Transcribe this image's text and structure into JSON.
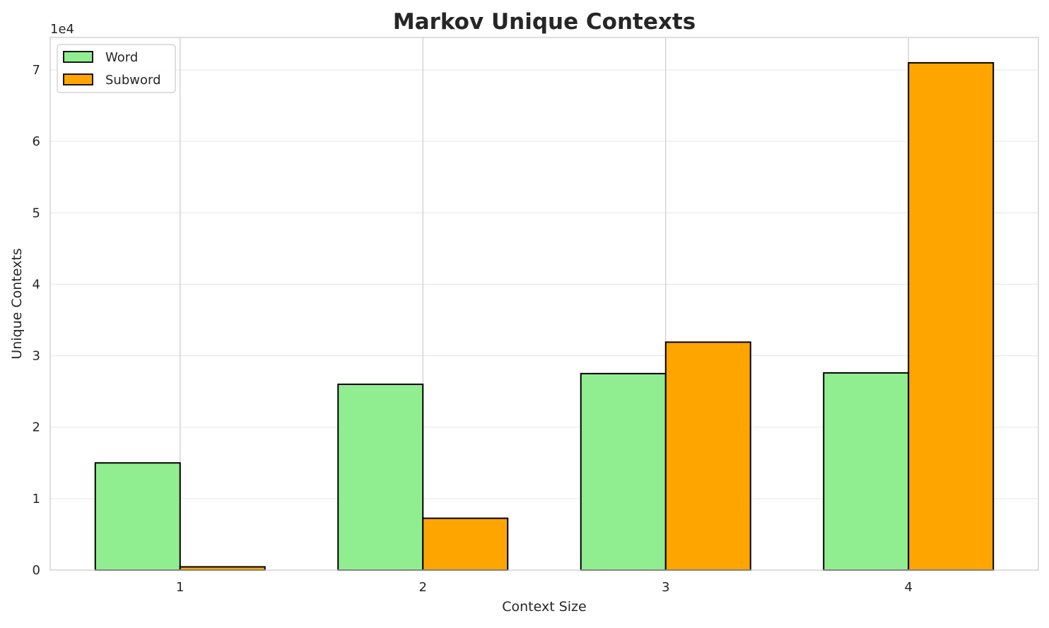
{
  "chart_data": {
    "type": "bar",
    "title": "Markov Unique Contexts",
    "xlabel": "Context Size",
    "ylabel": "Unique Contexts",
    "y_offset_label": "1e4",
    "categories": [
      "1",
      "2",
      "3",
      "4"
    ],
    "series": [
      {
        "name": "Word",
        "color": "#90EE90",
        "values": [
          15000,
          26000,
          27500,
          27600
        ]
      },
      {
        "name": "Subword",
        "color": "#FFA500",
        "values": [
          450,
          7250,
          31900,
          71000
        ]
      }
    ],
    "yticks": [
      0,
      10000,
      20000,
      30000,
      40000,
      50000,
      60000,
      70000
    ],
    "ytick_labels": [
      "0",
      "1",
      "2",
      "3",
      "4",
      "5",
      "6",
      "7"
    ],
    "ylim": [
      0,
      74550
    ],
    "grid": true,
    "legend": "top-left"
  }
}
